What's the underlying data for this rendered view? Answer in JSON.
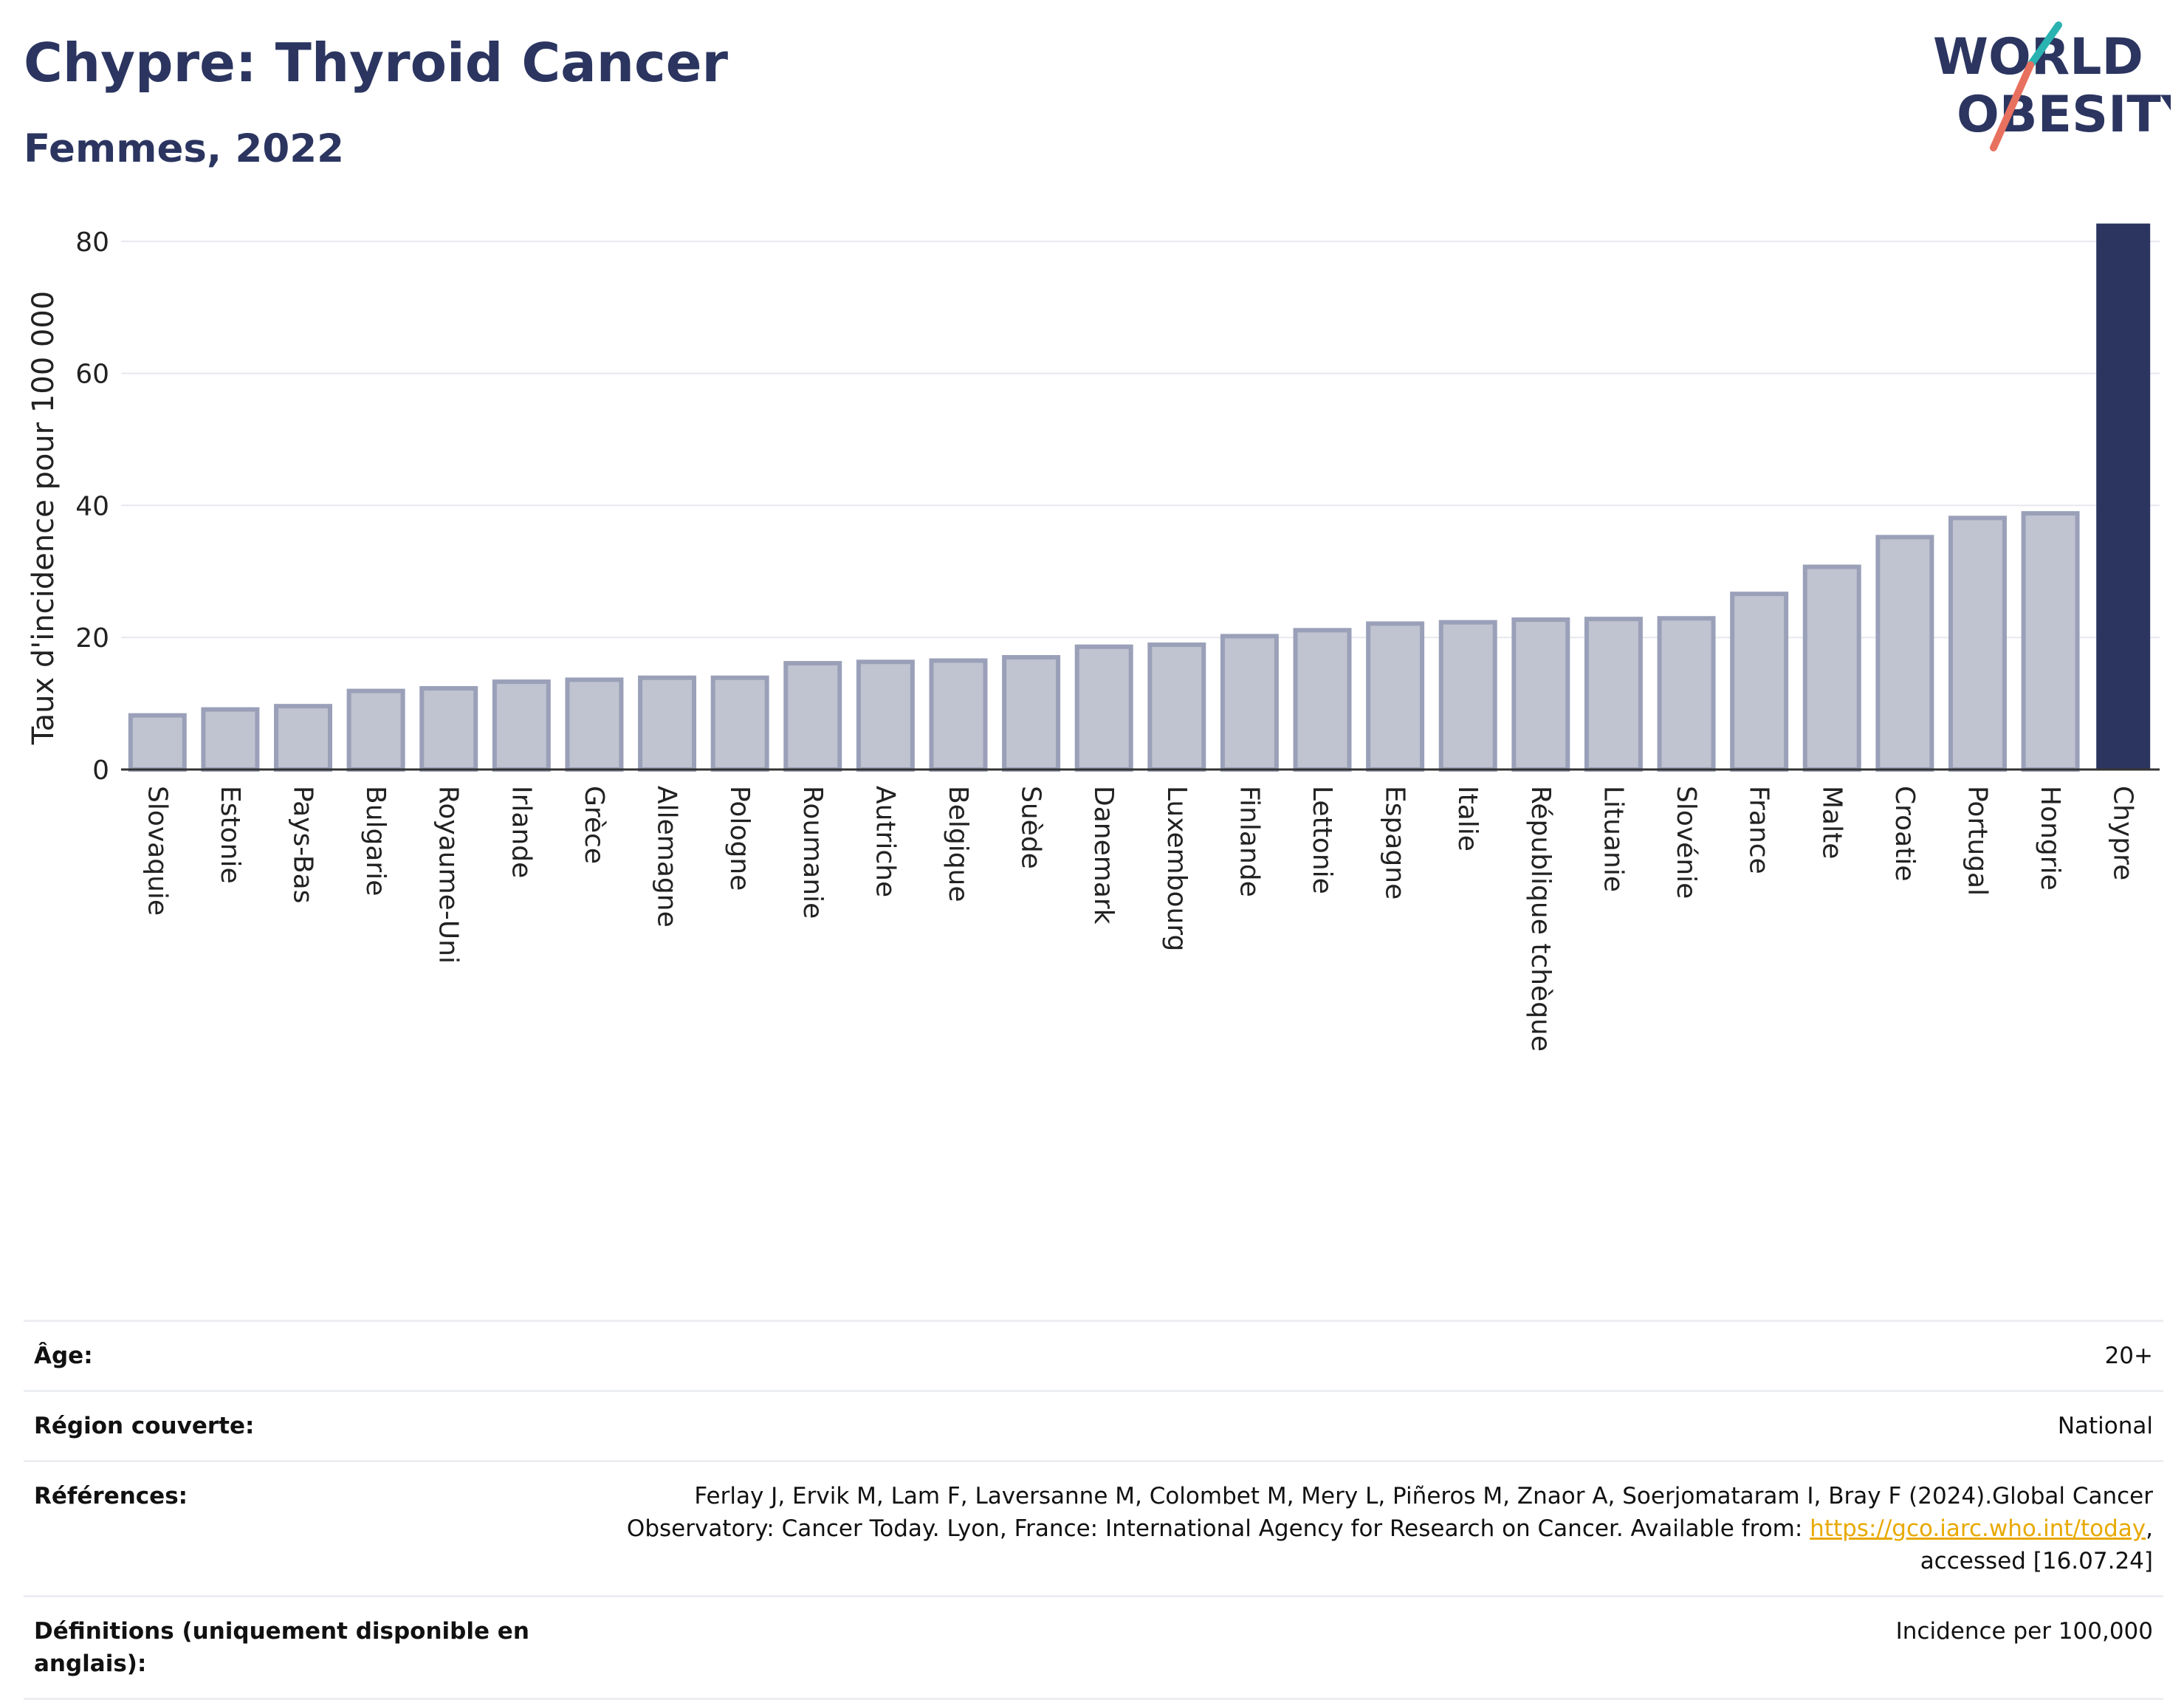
{
  "header": {
    "title": "Chypre: Thyroid Cancer",
    "subtitle": "Femmes, 2022"
  },
  "logo": {
    "line1": "WORLD",
    "line2": "OBESITY"
  },
  "colors": {
    "highlight": "#2b3560",
    "bar_fill": "#c0c3d0",
    "bar_stroke": "#9aa0b8",
    "logo_teal": "#2ab3b0",
    "logo_coral": "#e8705f",
    "link": "#e8a900"
  },
  "chart_data": {
    "type": "bar",
    "title": "Chypre: Thyroid Cancer",
    "subtitle": "Femmes, 2022",
    "ylabel": "Taux d'incidence pour 100 000",
    "xlabel": "",
    "ylim": [
      0,
      83
    ],
    "yticks": [
      0,
      20,
      40,
      60,
      80
    ],
    "grid": true,
    "highlight": "Chypre",
    "categories": [
      "Slovaquie",
      "Estonie",
      "Pays-Bas",
      "Bulgarie",
      "Royaume-Uni",
      "Irlande",
      "Grèce",
      "Allemagne",
      "Pologne",
      "Roumanie",
      "Autriche",
      "Belgique",
      "Suède",
      "Danemark",
      "Luxembourg",
      "Finlande",
      "Lettonie",
      "Espagne",
      "Italie",
      "République tchèque",
      "Lituanie",
      "Slovénie",
      "France",
      "Malte",
      "Croatie",
      "Portugal",
      "Hongrie",
      "Chypre"
    ],
    "values": [
      8.2,
      9.1,
      9.6,
      11.9,
      12.3,
      13.3,
      13.6,
      13.9,
      13.9,
      16.1,
      16.3,
      16.5,
      17.0,
      18.6,
      18.9,
      20.2,
      21.1,
      22.1,
      22.3,
      22.7,
      22.8,
      22.9,
      26.6,
      30.7,
      35.2,
      38.1,
      38.8,
      82.7
    ]
  },
  "meta": {
    "age_label": "Âge:",
    "age_value": "20+",
    "region_label": "Région couverte:",
    "region_value": "National",
    "references_label": "Références:",
    "references_text": "Ferlay J, Ervik M, Lam F, Laversanne M, Colombet M, Mery L, Piñeros M, Znaor A, Soerjomataram I, Bray F (2024).Global Cancer Observatory: Cancer Today. Lyon, France: International Agency for Research on Cancer. Available from: ",
    "references_link": "https://gco.iarc.who.int/today",
    "references_tail": ", accessed [16.07.24]",
    "definitions_label": "Définitions (uniquement disponible en anglais):",
    "definitions_value": "Incidence per 100,000"
  }
}
